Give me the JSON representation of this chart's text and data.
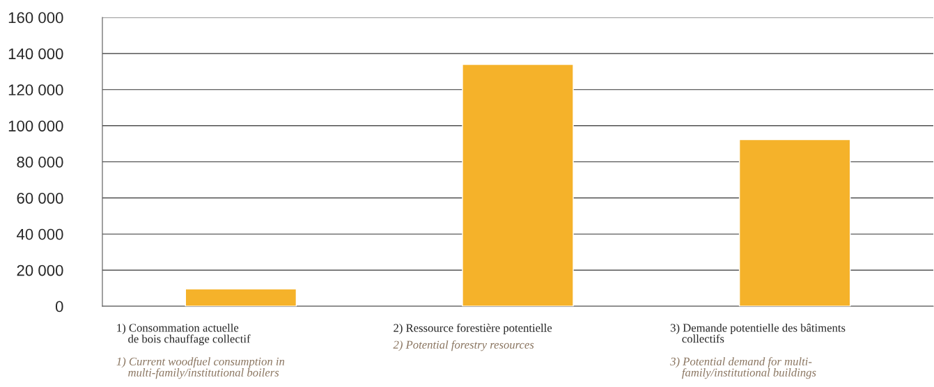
{
  "chart_data": {
    "type": "bar",
    "categories": [
      "1) Consommation actuelle\n    de bois chauffage collectif",
      "2) Ressource forestière potentielle",
      "3) Demande potentielle des bâtiments\n    collectifs"
    ],
    "values": [
      9600,
      134000,
      92300
    ],
    "color": "#f5b22a",
    "ylim": [
      0,
      160000
    ],
    "yticks": [
      0,
      {
        "value": 20000,
        "label": "20 000"
      },
      {
        "value": 40000,
        "label": "40 000"
      },
      {
        "value": 60000,
        "label": "60 000"
      },
      {
        "value": 80000,
        "label": "80 000"
      },
      {
        "value": 100000,
        "label": "100 000"
      },
      {
        "value": 120000,
        "label": "120 000"
      },
      {
        "value": 140000,
        "label": "140 000"
      },
      {
        "value": 160000,
        "label": "160 000"
      }
    ],
    "grid": "y",
    "annotations": [
      "1) Current woodfuel consumption in\n    multi-family/institutional boilers",
      "2) Potential forestry resources",
      "3) Potential demand for multi-\n    family/institutional buildings"
    ]
  }
}
